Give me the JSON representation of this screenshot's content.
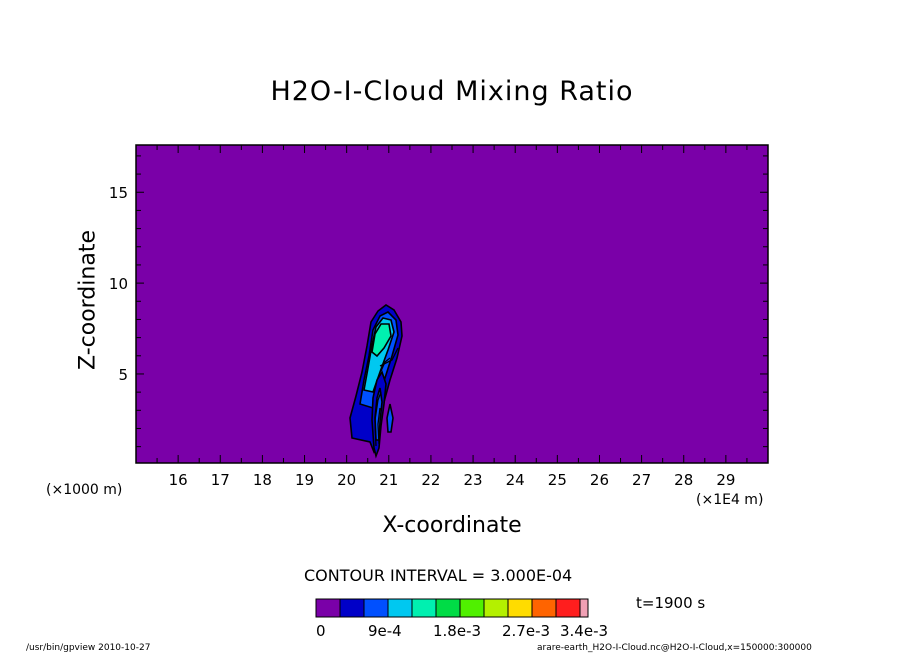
{
  "chart_data": {
    "type": "contour",
    "title": "H2O-I-Cloud Mixing Ratio",
    "xlabel": "X-coordinate",
    "ylabel": "Z-coordinate",
    "x_unit_label": "(×1000 m)",
    "x_tick_unit_label": "(×1E4 m)",
    "x_ticks": [
      "16",
      "17",
      "18",
      "19",
      "20",
      "21",
      "22",
      "23",
      "24",
      "25",
      "26",
      "27",
      "28",
      "29"
    ],
    "y_ticks": [
      "5",
      "10",
      "15"
    ],
    "xlim": [
      15.0,
      30.0
    ],
    "ylim": [
      0.1,
      17.6
    ],
    "contour_interval": "CONTOUR INTERVAL = 3.000E-04",
    "time_label": "t=1900 s",
    "colorbar": {
      "colors": [
        "#7a00a8",
        "#0000c8",
        "#0050ff",
        "#00c8f0",
        "#00f0b0",
        "#00dc46",
        "#50f000",
        "#b4f000",
        "#ffdc00",
        "#ff6400",
        "#ff1e1e",
        "#f0a0b4"
      ],
      "labels": [
        "0",
        "9e-4",
        "1.8e-3",
        "2.7e-3",
        "3.4e-3"
      ]
    },
    "background_color": "#7a00a8",
    "footer_left": "/usr/bin/gpview   2010-10-27",
    "footer_right": "arare-earth_H2O-I-Cloud.nc@H2O-I-Cloud,x=150000:300000"
  }
}
